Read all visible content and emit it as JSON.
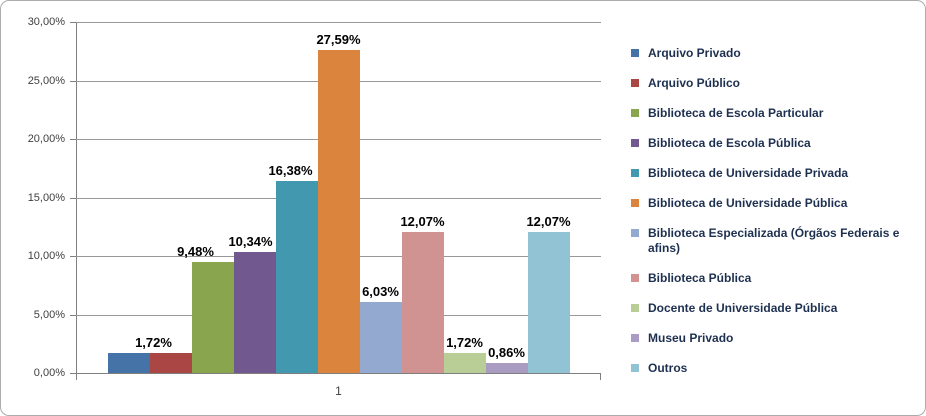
{
  "chart_data": {
    "type": "bar",
    "title": "",
    "categories": [
      "1"
    ],
    "series": [
      {
        "name": "Arquivo Privado",
        "value": 1.72,
        "display_value": "1,72%",
        "color": "#4572A7",
        "label_visible": false
      },
      {
        "name": "Arquivo Público",
        "value": 1.72,
        "display_value": "1,72%",
        "color": "#AA4643",
        "label_dx": -17
      },
      {
        "name": "Biblioteca de Escola Particular",
        "value": 9.48,
        "display_value": "9,48%",
        "color": "#89A54E",
        "label_dx": -17
      },
      {
        "name": "Biblioteca de Escola Pública",
        "value": 10.34,
        "display_value": "10,34%",
        "color": "#71588F",
        "label_dx": -4
      },
      {
        "name": "Biblioteca de Universidade Privada",
        "value": 16.38,
        "display_value": "16,38%",
        "color": "#4198AF",
        "label_dx": -6
      },
      {
        "name": "Biblioteca de Universidade Pública",
        "value": 27.59,
        "display_value": "27,59%",
        "color": "#DB843D",
        "label_dx": 0
      },
      {
        "name": "Biblioteca Especializada (Órgãos Federais e afins)",
        "value": 6.03,
        "display_value": "6,03%",
        "color": "#93A9CF",
        "label_dx": 0
      },
      {
        "name": "Biblioteca Pública",
        "value": 12.07,
        "display_value": "12,07%",
        "color": "#D19392",
        "label_dx": 0
      },
      {
        "name": "Docente de Universidade Pública",
        "value": 1.72,
        "display_value": "1,72%",
        "color": "#B9CD96",
        "label_dx": 0
      },
      {
        "name": "Museu Privado",
        "value": 0.86,
        "display_value": "0,86%",
        "color": "#A99BC1",
        "label_dx": 0
      },
      {
        "name": "Outros",
        "value": 12.07,
        "display_value": "12,07%",
        "color": "#91C3D4",
        "label_dx": 0
      }
    ],
    "y_axis": {
      "min": 0,
      "max": 30,
      "step": 5,
      "tick_labels": [
        "30,00%",
        "25,00%",
        "20,00%",
        "15,00%",
        "10,00%",
        "5,00%",
        "0,00%"
      ]
    },
    "x_axis": {
      "tick_labels": [
        "1"
      ]
    },
    "legend_position": "right",
    "grid": true,
    "colors": {
      "gridline": "#989898",
      "axis": "#7F7F7F",
      "data_label": "#000000",
      "axis_label": "#3F3F3F",
      "legend_text": "#1E3050",
      "chart_border": "#ACACAC",
      "background": "#FFFFFF"
    }
  }
}
